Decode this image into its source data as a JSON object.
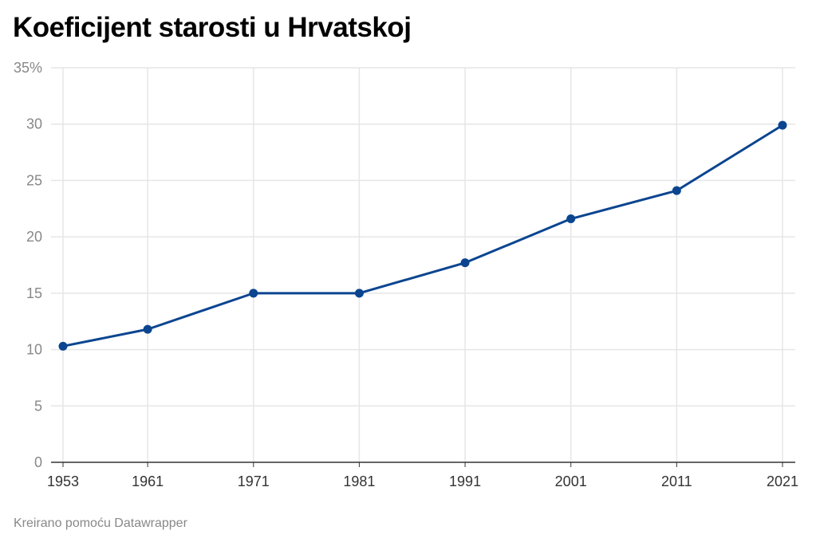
{
  "title": "Koeficijent starosti u Hrvatskoj",
  "credit": "Kreirano pomoću Datawrapper",
  "colors": {
    "line": "#0b4590",
    "grid": "#e6e6e6",
    "axis": "#333333"
  },
  "chart_data": {
    "type": "line",
    "title": "Koeficijent starosti u Hrvatskoj",
    "xlabel": "",
    "ylabel": "",
    "x": [
      "1953",
      "1961",
      "1971",
      "1981",
      "1991",
      "2001",
      "2011",
      "2021"
    ],
    "series": [
      {
        "values": [
          10.3,
          11.8,
          15.0,
          15.0,
          17.7,
          21.6,
          24.1,
          29.9
        ]
      }
    ],
    "ylim": [
      0,
      35
    ],
    "yticks": [
      0,
      5,
      10,
      15,
      20,
      25,
      30,
      35
    ],
    "ytick_labels": [
      "0",
      "5",
      "10",
      "15",
      "20",
      "25",
      "30",
      "35%"
    ],
    "grid": true,
    "markers": true,
    "legend": "none"
  }
}
